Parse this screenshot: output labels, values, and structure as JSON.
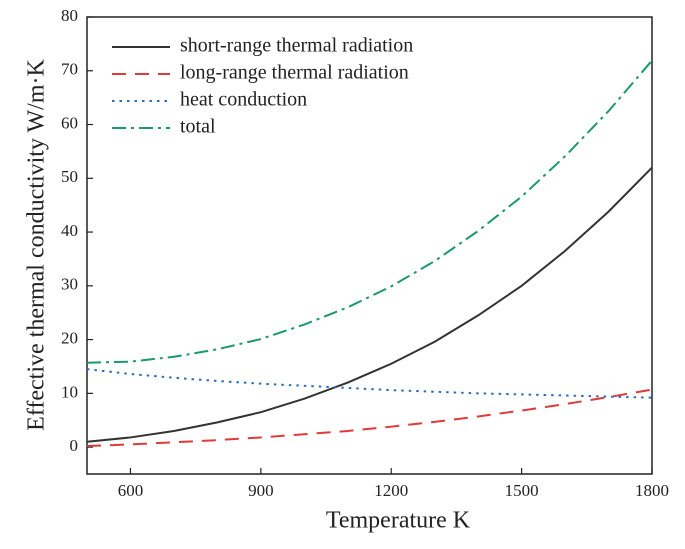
{
  "chart_data": {
    "type": "line",
    "xlabel": "Temperature   K",
    "ylabel": "Effective thermal conductivity   W/m·K",
    "x": [
      500,
      600,
      700,
      800,
      900,
      1000,
      1100,
      1200,
      1300,
      1400,
      1500,
      1600,
      1700,
      1800
    ],
    "series": [
      {
        "name": "short-range thermal radiation",
        "color": "#333333",
        "linestyle": "solid",
        "values": [
          1.0,
          1.8,
          3.0,
          4.6,
          6.5,
          9.0,
          12.0,
          15.5,
          19.6,
          24.5,
          30.0,
          36.5,
          43.8,
          52.0
        ]
      },
      {
        "name": "long-range thermal radiation",
        "color": "#e03a3a",
        "linestyle": "dashed",
        "values": [
          0.2,
          0.5,
          0.9,
          1.3,
          1.8,
          2.4,
          3.0,
          3.8,
          4.7,
          5.7,
          6.8,
          8.0,
          9.3,
          10.7
        ]
      },
      {
        "name": "heat conduction",
        "color": "#2a6ebb",
        "linestyle": "dotted",
        "values": [
          14.5,
          13.6,
          12.9,
          12.3,
          11.8,
          11.4,
          11.0,
          10.6,
          10.3,
          10.0,
          9.8,
          9.6,
          9.4,
          9.2
        ]
      },
      {
        "name": "total",
        "color": "#1a9a6a",
        "linestyle": "dashdot",
        "values": [
          15.7,
          15.9,
          16.8,
          18.2,
          20.1,
          22.8,
          26.0,
          29.9,
          34.6,
          40.2,
          46.6,
          54.1,
          62.5,
          71.9
        ]
      }
    ],
    "xlim": [
      500,
      1800
    ],
    "xticks": [
      600,
      900,
      1200,
      1500,
      1800
    ],
    "ylim": [
      -5,
      80
    ],
    "yticks": [
      0,
      10,
      20,
      30,
      40,
      50,
      60,
      70,
      80
    ],
    "legend": "upper-left"
  }
}
